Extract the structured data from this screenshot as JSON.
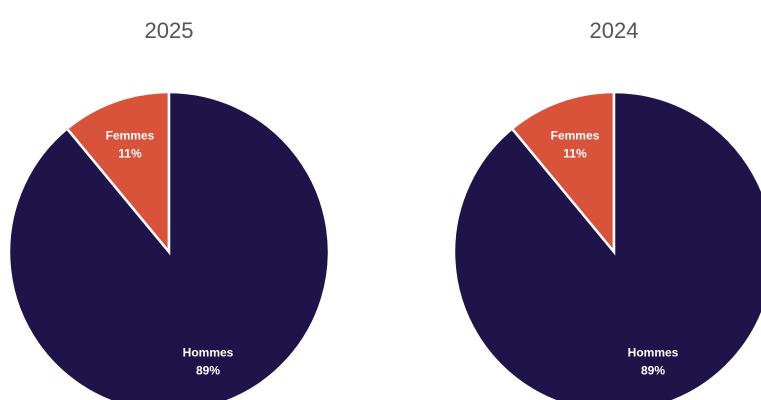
{
  "chart_data": [
    {
      "type": "pie",
      "title": "2025",
      "categories": [
        "Femmes",
        "Hommes"
      ],
      "values": [
        11,
        89
      ],
      "value_labels": [
        "11%",
        "89%"
      ],
      "colors": [
        "#d9533a",
        "#1f1449"
      ]
    },
    {
      "type": "pie",
      "title": "2024",
      "categories": [
        "Femmes",
        "Hommes"
      ],
      "values": [
        11,
        89
      ],
      "value_labels": [
        "11%",
        "89%"
      ],
      "colors": [
        "#d9533a",
        "#1f1449"
      ]
    }
  ]
}
